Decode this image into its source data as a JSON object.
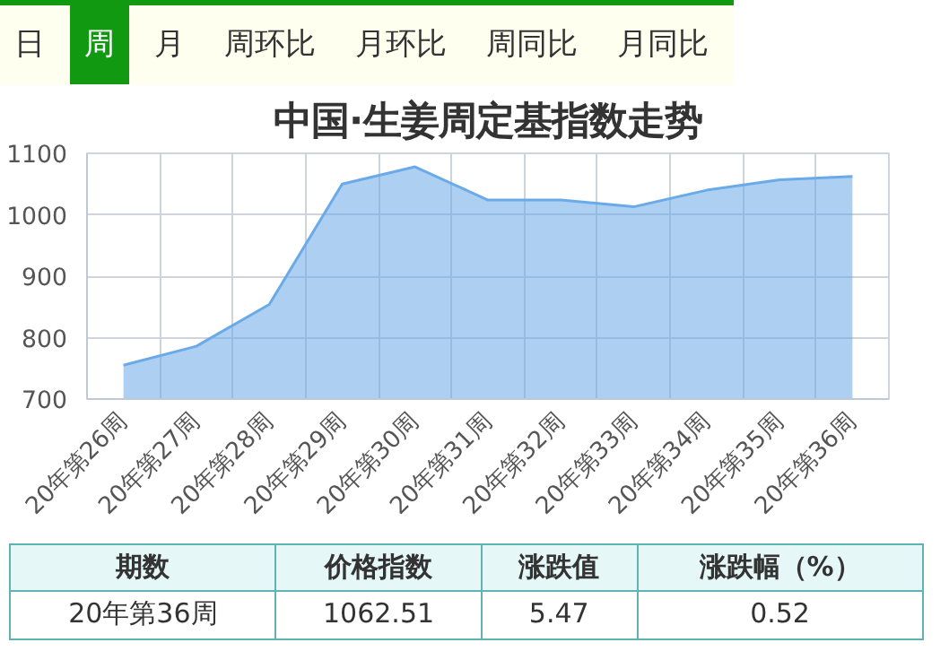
{
  "chart_data": {
    "type": "area",
    "title": "中国·生姜周定基指数走势",
    "categories": [
      "20年第26周",
      "20年第27周",
      "20年第28周",
      "20年第29周",
      "20年第30周",
      "20年第31周",
      "20年第32周",
      "20年第33周",
      "20年第34周",
      "20年第35周",
      "20年第36周"
    ],
    "series": [
      {
        "color": "#6aaae8",
        "values": [
          755,
          786,
          854,
          1050,
          1078,
          1024,
          1024,
          1013,
          1040,
          1057,
          1062.51
        ]
      }
    ],
    "ylim": [
      700,
      1100
    ],
    "yticks": [
      700,
      800,
      900,
      1000,
      1100
    ],
    "grid": true,
    "annotations": [
      "日",
      "周",
      "月",
      "周环比",
      "月环比",
      "周同比",
      "月同比",
      "期数",
      "价格指数",
      "涨跌值",
      "涨跌幅（%）",
      "20年第36周",
      "1062.51",
      "5.47",
      "0.52"
    ]
  }
}
